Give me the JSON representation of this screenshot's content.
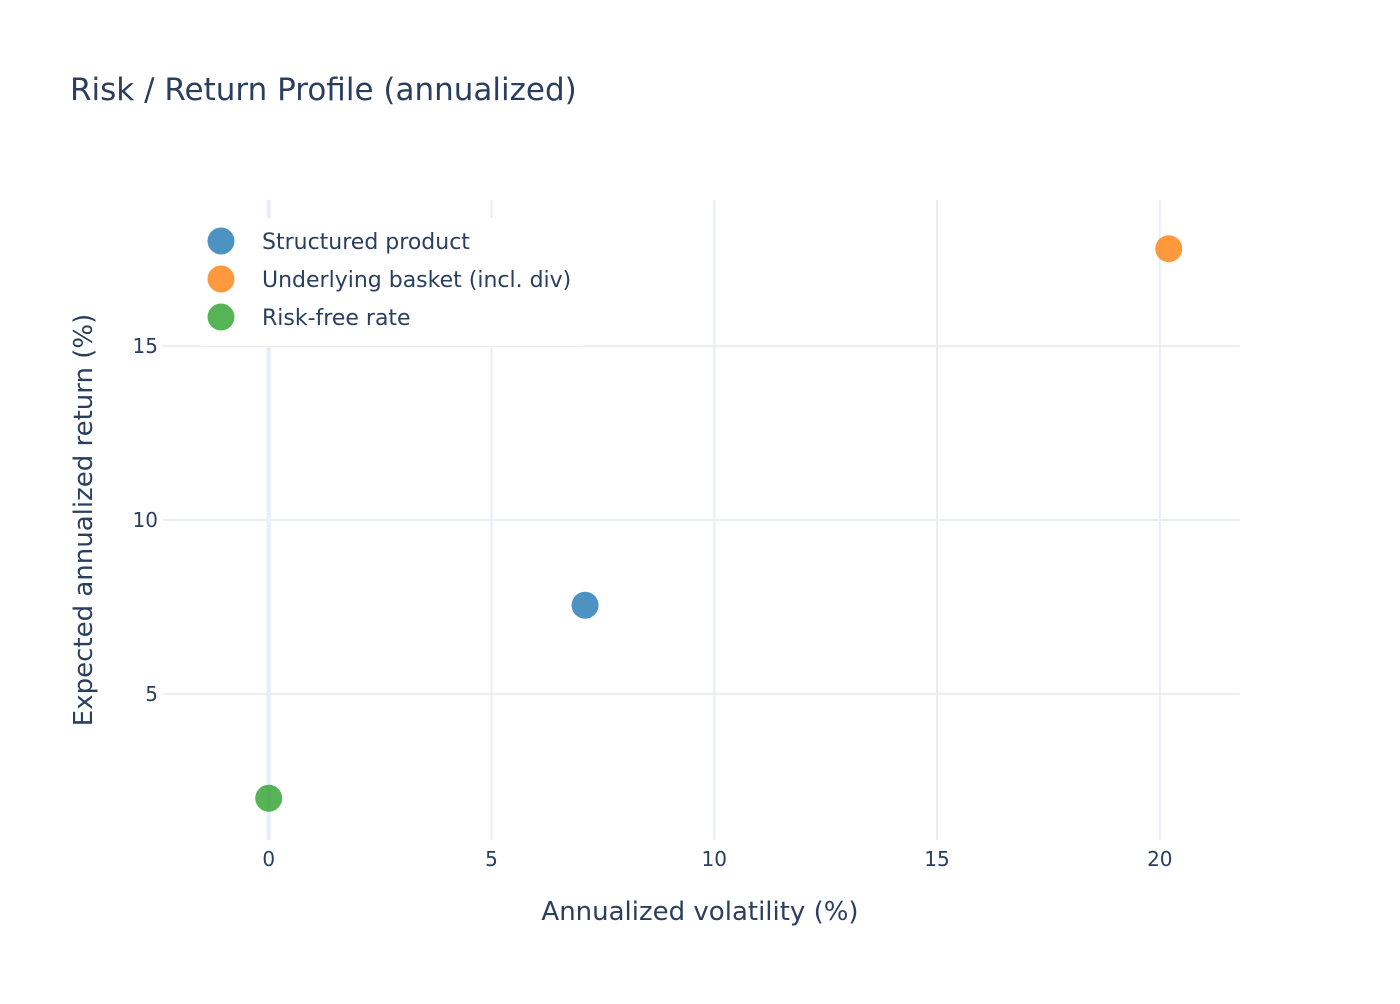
{
  "chart_data": {
    "type": "scatter",
    "title": "Risk / Return Profile (annualized)",
    "xlabel": "Annualized volatility (%)",
    "ylabel": "Expected annualized return (%)",
    "xlim": [
      -1.7,
      21.8
    ],
    "ylim": [
      0.8,
      19.2
    ],
    "xticks": [
      0,
      5,
      10,
      15,
      20
    ],
    "yticks": [
      5,
      10,
      15
    ],
    "xtick_labels": [
      "0",
      "5",
      "10",
      "15",
      "20"
    ],
    "ytick_labels": [
      "5",
      "10",
      "15"
    ],
    "grid": true,
    "legend_position": "top-left",
    "series": [
      {
        "name": "Structured product",
        "color": "#1f77b4",
        "x": [
          7.1
        ],
        "y": [
          7.55
        ]
      },
      {
        "name": "Underlying basket (incl. div)",
        "color": "#ff7f0e",
        "x": [
          20.2
        ],
        "y": [
          17.8
        ]
      },
      {
        "name": "Risk-free rate",
        "color": "#2ca02c",
        "x": [
          0.0
        ],
        "y": [
          2.0
        ]
      }
    ]
  }
}
